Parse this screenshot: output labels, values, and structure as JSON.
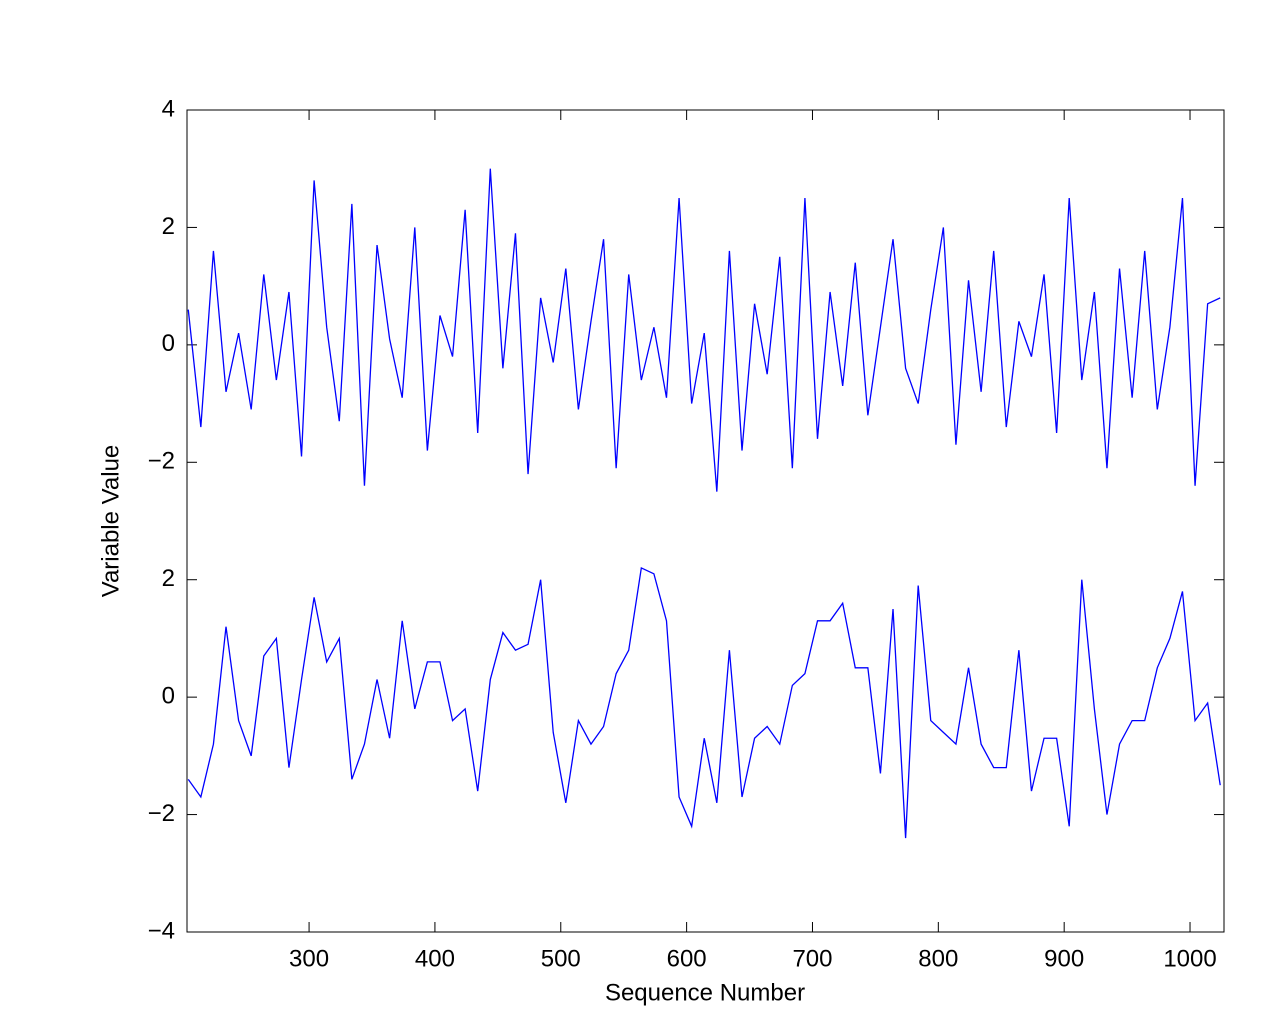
{
  "chart_data": {
    "type": "line",
    "xlabel": "Sequence Number",
    "ylabel": "Variable Value",
    "xlim": [
      203,
      1027
    ],
    "xticks": [
      300,
      400,
      500,
      600,
      700,
      800,
      900,
      1000
    ],
    "ylim": [
      -10,
      4
    ],
    "yticks": [
      4,
      2,
      0,
      {
        "value": -2,
        "label": "−2"
      },
      {
        "value": -4,
        "label": "2"
      },
      {
        "value": -6,
        "label": "0"
      },
      {
        "value": -8,
        "label": "−2"
      },
      {
        "value": -10,
        "label": "−4"
      }
    ],
    "x": [
      204,
      214,
      224,
      234,
      244,
      254,
      264,
      274,
      284,
      294,
      304,
      314,
      324,
      334,
      344,
      354,
      364,
      374,
      384,
      394,
      404,
      414,
      424,
      434,
      444,
      454,
      464,
      474,
      484,
      494,
      504,
      514,
      524,
      534,
      544,
      554,
      564,
      574,
      584,
      594,
      604,
      614,
      624,
      634,
      644,
      654,
      664,
      674,
      684,
      694,
      704,
      714,
      724,
      734,
      744,
      754,
      764,
      774,
      784,
      794,
      804,
      814,
      824,
      834,
      844,
      854,
      864,
      874,
      884,
      894,
      904,
      914,
      924,
      934,
      944,
      954,
      964,
      974,
      984,
      994,
      1004,
      1014,
      1024
    ],
    "series": [
      {
        "color": "#0000ff",
        "values": [
          0.6,
          -1.4,
          1.6,
          -0.8,
          0.2,
          -1.1,
          1.2,
          -0.6,
          0.9,
          -1.9,
          2.8,
          0.3,
          -1.3,
          2.4,
          -2.4,
          1.7,
          0.1,
          -0.9,
          2.0,
          -1.8,
          0.5,
          -0.2,
          2.3,
          -1.5,
          3.0,
          -0.4,
          1.9,
          -2.2,
          0.8,
          -0.3,
          1.3,
          -1.1,
          0.4,
          1.8,
          -2.1,
          1.2,
          -0.6,
          0.3,
          -0.9,
          2.5,
          -1.0,
          0.2,
          -2.5,
          1.6,
          -1.8,
          0.7,
          -0.5,
          1.5,
          -2.1,
          2.5,
          -1.6,
          0.9,
          -0.7,
          1.4,
          -1.2,
          0.3,
          1.8,
          -0.4,
          -1.0,
          0.6,
          2.0,
          -1.7,
          1.1,
          -0.8,
          1.6,
          -1.4,
          0.4,
          -0.2,
          1.2,
          -1.5,
          2.5,
          -0.6,
          0.9,
          -2.1,
          1.3,
          -0.9,
          1.6,
          -1.1,
          0.3,
          2.5,
          -2.4,
          0.7,
          0.8
        ]
      },
      {
        "color": "#0000ff",
        "values": [
          -7.4,
          -7.7,
          -6.8,
          -4.8,
          -6.4,
          -7.0,
          -5.3,
          -5.0,
          -7.2,
          -5.7,
          -4.3,
          -5.4,
          -5.0,
          -7.4,
          -6.8,
          -5.7,
          -6.7,
          -4.7,
          -6.2,
          -5.4,
          -5.4,
          -6.4,
          -6.2,
          -7.6,
          -5.7,
          -4.9,
          -5.2,
          -5.1,
          -4.0,
          -6.6,
          -7.8,
          -6.4,
          -6.8,
          -6.5,
          -5.6,
          -5.2,
          -3.8,
          -3.9,
          -4.7,
          -7.7,
          -8.2,
          -6.7,
          -7.8,
          -5.2,
          -7.7,
          -6.7,
          -6.5,
          -6.8,
          -5.8,
          -5.6,
          -4.7,
          -4.7,
          -4.4,
          -5.5,
          -5.5,
          -7.3,
          -4.5,
          -8.4,
          -4.1,
          -6.4,
          -6.6,
          -6.8,
          -5.5,
          -6.8,
          -7.2,
          -7.2,
          -5.2,
          -7.6,
          -6.7,
          -6.7,
          -8.2,
          -4.0,
          -6.2,
          -8.0,
          -6.8,
          -6.4,
          -6.4,
          -5.5,
          -5.0,
          -4.2,
          -6.4,
          -6.1,
          -7.5
        ]
      }
    ]
  }
}
